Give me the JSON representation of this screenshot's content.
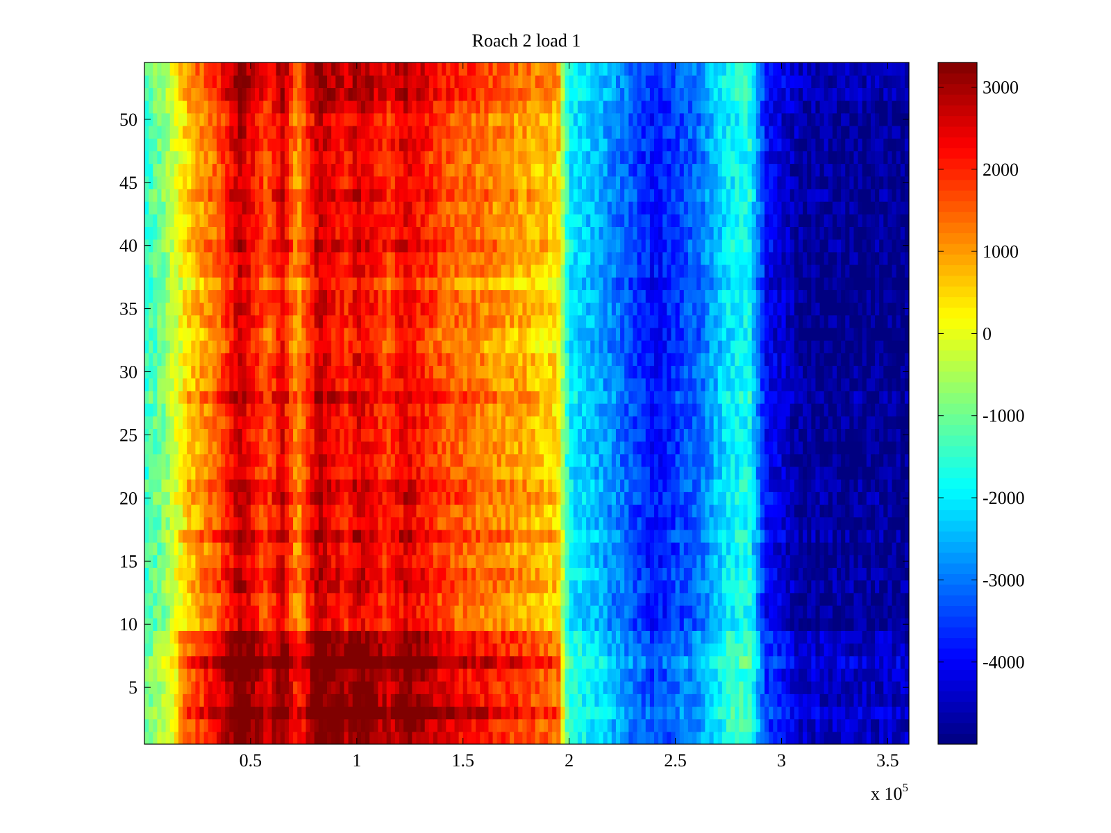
{
  "chart_data": {
    "type": "heatmap",
    "title": "Roach 2 load 1",
    "xlabel": "",
    "ylabel": "",
    "x_range": [
      0,
      360000
    ],
    "y_range": [
      0.5,
      54.5
    ],
    "rows": 54,
    "x_ticks": [
      {
        "value": 50000,
        "label": "0.5"
      },
      {
        "value": 100000,
        "label": "1"
      },
      {
        "value": 150000,
        "label": "1.5"
      },
      {
        "value": 200000,
        "label": "2"
      },
      {
        "value": 250000,
        "label": "2.5"
      },
      {
        "value": 300000,
        "label": "3"
      },
      {
        "value": 350000,
        "label": "3.5"
      }
    ],
    "x_exponent_prefix": "x 10",
    "x_exponent_power": "5",
    "y_ticks": [
      {
        "value": 5,
        "label": "5"
      },
      {
        "value": 10,
        "label": "10"
      },
      {
        "value": 15,
        "label": "15"
      },
      {
        "value": 20,
        "label": "20"
      },
      {
        "value": 25,
        "label": "25"
      },
      {
        "value": 30,
        "label": "30"
      },
      {
        "value": 35,
        "label": "35"
      },
      {
        "value": 40,
        "label": "40"
      },
      {
        "value": 45,
        "label": "45"
      },
      {
        "value": 50,
        "label": "50"
      }
    ],
    "colorbar": {
      "range": [
        -5000,
        3300
      ],
      "colormap": "jet",
      "ticks": [
        {
          "value": 3000,
          "label": "3000"
        },
        {
          "value": 2000,
          "label": "2000"
        },
        {
          "value": 1000,
          "label": "1000"
        },
        {
          "value": 0,
          "label": "0"
        },
        {
          "value": -1000,
          "label": "-1000"
        },
        {
          "value": -2000,
          "label": "-2000"
        },
        {
          "value": -3000,
          "label": "-3000"
        },
        {
          "value": -4000,
          "label": "-4000"
        }
      ]
    },
    "column_profile": [
      {
        "x": 0,
        "value": -1500
      },
      {
        "x": 10000,
        "value": -800
      },
      {
        "x": 20000,
        "value": 500
      },
      {
        "x": 35000,
        "value": 1500
      },
      {
        "x": 45000,
        "value": 2700
      },
      {
        "x": 58000,
        "value": 1500
      },
      {
        "x": 65000,
        "value": 2500
      },
      {
        "x": 72000,
        "value": 900
      },
      {
        "x": 82000,
        "value": 2700
      },
      {
        "x": 95000,
        "value": 2000
      },
      {
        "x": 100000,
        "value": 2500
      },
      {
        "x": 115000,
        "value": 1800
      },
      {
        "x": 123000,
        "value": 2400
      },
      {
        "x": 140000,
        "value": 1600
      },
      {
        "x": 160000,
        "value": 1200
      },
      {
        "x": 180000,
        "value": 800
      },
      {
        "x": 195000,
        "value": 400
      },
      {
        "x": 200000,
        "value": -2000
      },
      {
        "x": 215000,
        "value": -2600
      },
      {
        "x": 240000,
        "value": -3900
      },
      {
        "x": 260000,
        "value": -3200
      },
      {
        "x": 275000,
        "value": -2000
      },
      {
        "x": 285000,
        "value": -1800
      },
      {
        "x": 293000,
        "value": -4000
      },
      {
        "x": 310000,
        "value": -4800
      },
      {
        "x": 360000,
        "value": -4900
      }
    ],
    "row_offsets": [
      {
        "rows": [
          1,
          9
        ],
        "value": 900
      },
      {
        "rows": [
          3,
          3
        ],
        "value": 600
      },
      {
        "rows": [
          7,
          7
        ],
        "value": 700
      },
      {
        "rows": [
          13,
          14
        ],
        "value": 300
      },
      {
        "rows": [
          17,
          17
        ],
        "value": 500
      },
      {
        "rows": [
          20,
          21
        ],
        "value": 300
      },
      {
        "rows": [
          28,
          28
        ],
        "value": 400
      },
      {
        "rows": [
          32,
          33
        ],
        "value": -300
      },
      {
        "rows": [
          37,
          37
        ],
        "value": -400
      },
      {
        "rows": [
          40,
          40
        ],
        "value": 300
      },
      {
        "rows": [
          44,
          44
        ],
        "value": 300
      },
      {
        "rows": [
          48,
          49
        ],
        "value": 200
      },
      {
        "rows": [
          51,
          51
        ],
        "value": 300
      },
      {
        "rows": [
          52,
          54
        ],
        "value": 600
      }
    ]
  }
}
